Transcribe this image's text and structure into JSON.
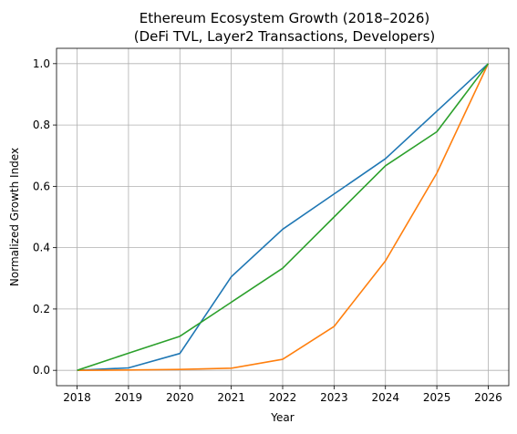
{
  "chart_data": {
    "type": "line",
    "title_line1": "Ethereum Ecosystem Growth (2018–2026)",
    "title_line2": "(DeFi TVL, Layer2 Transactions, Developers)",
    "xlabel": "Year",
    "ylabel": "Normalized Growth Index",
    "x": [
      2018,
      2019,
      2020,
      2021,
      2022,
      2023,
      2024,
      2025,
      2026
    ],
    "x_tick_labels": [
      "2018",
      "2019",
      "2020",
      "2021",
      "2022",
      "2023",
      "2024",
      "2025",
      "2026"
    ],
    "y_ticks": [
      0.0,
      0.2,
      0.4,
      0.6,
      0.8,
      1.0
    ],
    "y_tick_labels": [
      "0.0",
      "0.2",
      "0.4",
      "0.6",
      "0.8",
      "1.0"
    ],
    "xlim": [
      2017.6,
      2026.4
    ],
    "ylim": [
      -0.05,
      1.05
    ],
    "grid": true,
    "series": [
      {
        "color": "#1f77b4",
        "values": [
          0.0,
          0.008,
          0.055,
          0.305,
          0.46,
          0.575,
          0.69,
          0.845,
          1.0
        ]
      },
      {
        "color": "#ff7f0e",
        "values": [
          0.0,
          0.001,
          0.003,
          0.007,
          0.036,
          0.143,
          0.357,
          0.643,
          1.0
        ]
      },
      {
        "color": "#2ca02c",
        "values": [
          0.0,
          0.056,
          0.111,
          0.222,
          0.333,
          0.5,
          0.667,
          0.778,
          1.0
        ]
      }
    ]
  }
}
